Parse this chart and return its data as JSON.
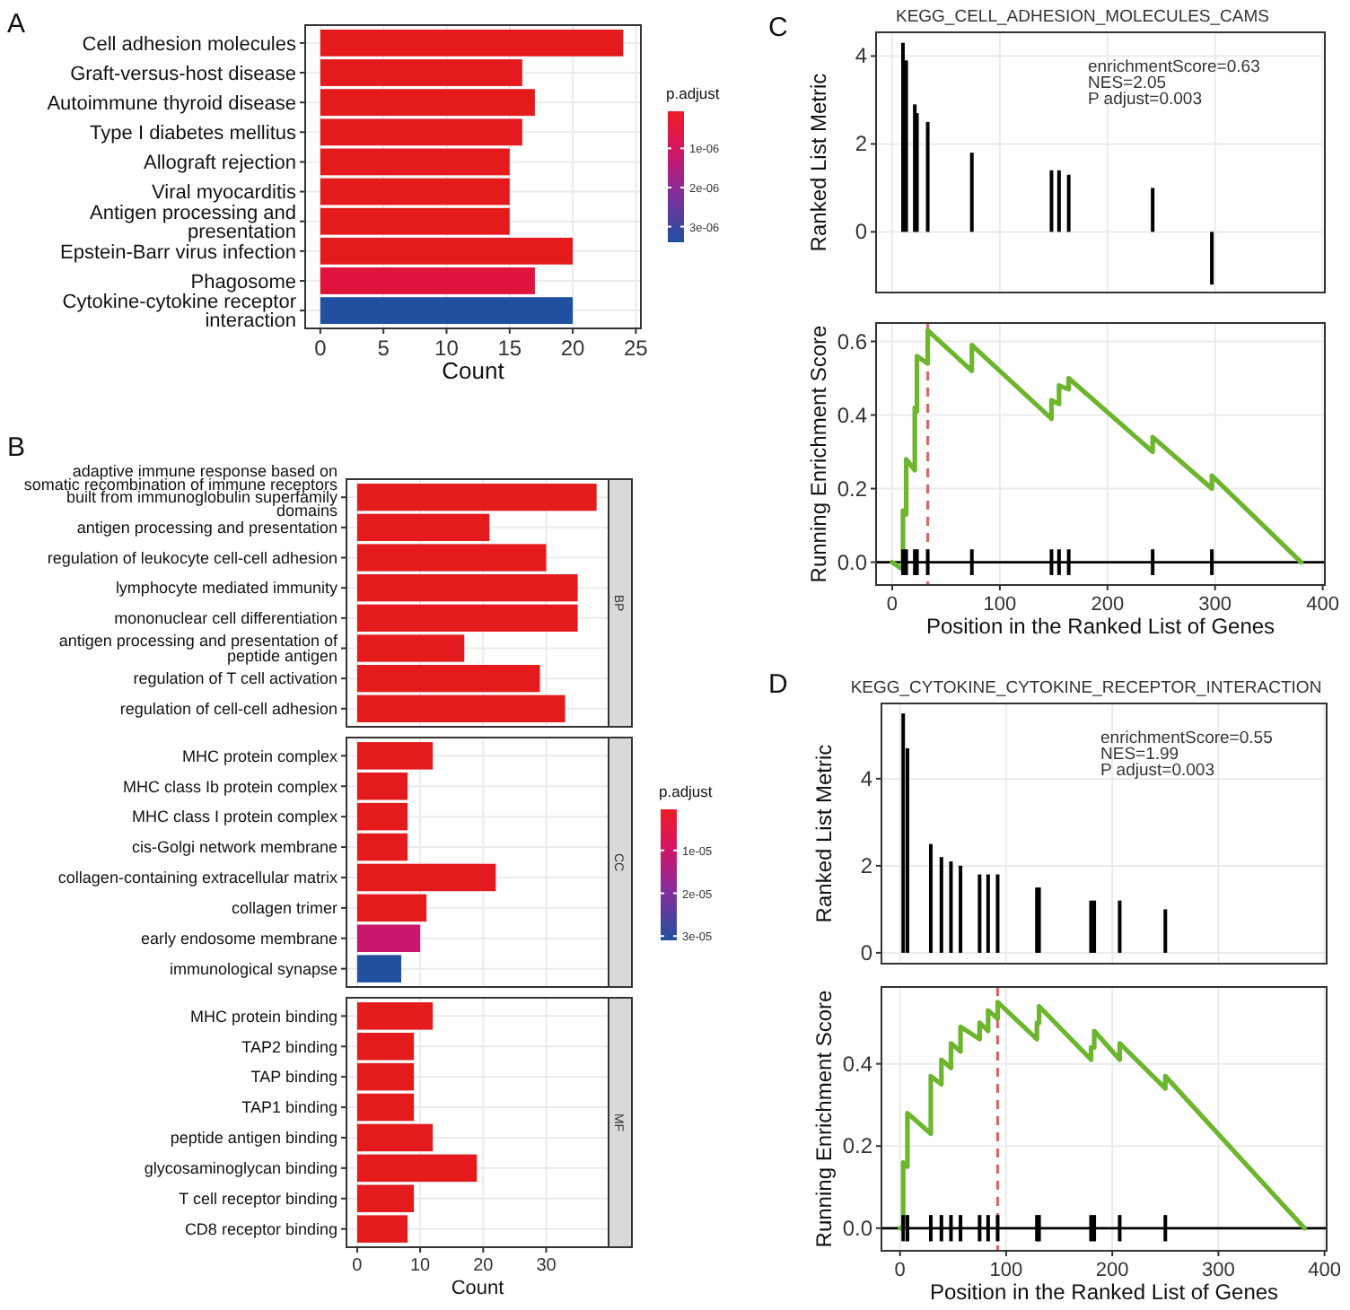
{
  "chart_data": [
    {
      "type": "bar",
      "orientation": "horizontal",
      "xlabel": "Count",
      "categories": [
        "Cell adhesion molecules",
        "Graft-versus-host disease",
        "Autoimmune thyroid disease",
        "Type I diabetes mellitus",
        "Allograft rejection",
        "Viral myocarditis",
        "Antigen processing and presentation",
        "Epstein-Barr virus infection",
        "Phagosome",
        "Cytokine-cytokine receptor interaction"
      ],
      "values": [
        24,
        16,
        17,
        16,
        15,
        15,
        15,
        20,
        17,
        20
      ],
      "colors": [
        "#e41a1c",
        "#e41a1c",
        "#e41a1c",
        "#e41a1c",
        "#e41a1c",
        "#e41a1c",
        "#e41a1c",
        "#e41a1c",
        "#e0133c",
        "#2150a0"
      ],
      "xlim": [
        -1.2,
        25.4
      ],
      "xticks": [
        0,
        5,
        10,
        15,
        20,
        25
      ],
      "grid": true,
      "clabel": "p.adjust",
      "clim": [
        5e-08,
        3.4e-06
      ],
      "cticks": [
        {
          "value": 1e-06,
          "label": "1e-06"
        },
        {
          "value": 2e-06,
          "label": "2e-06"
        },
        {
          "value": 3e-06,
          "label": "3e-06"
        }
      ],
      "annotations": [
        "A"
      ]
    },
    {
      "type": "bar",
      "orientation": "horizontal",
      "title": "BP",
      "categories": [
        "adaptive immune response based on somatic recombination of immune receptors built from immunoglobulin superfamily domains",
        "antigen processing and presentation",
        "regulation of leukocyte cell-cell adhesion",
        "lymphocyte mediated immunity",
        "mononuclear cell differentiation",
        "antigen processing and presentation of peptide antigen",
        "regulation of T cell activation",
        "regulation of cell-cell adhesion"
      ],
      "values": [
        38,
        21,
        30,
        35,
        35,
        17,
        29,
        33
      ],
      "colors": [
        "#e41a1c",
        "#e41a1c",
        "#e41a1c",
        "#e41a1c",
        "#e41a1c",
        "#e41a1c",
        "#e41a1c",
        "#e41a1c"
      ],
      "xlim": [
        -1.7,
        39.9
      ],
      "xticks": [
        0,
        10,
        20,
        30
      ],
      "grid": true,
      "tick_labels": "y",
      "annotations": [
        "B"
      ]
    },
    {
      "type": "bar",
      "orientation": "horizontal",
      "title": "CC",
      "categories": [
        "MHC protein complex",
        "MHC class Ib protein complex",
        "MHC class I protein complex",
        "cis-Golgi network membrane",
        "collagen-containing extracellular matrix",
        "collagen trimer",
        "early endosome membrane",
        "immunological synapse"
      ],
      "values": [
        12,
        8,
        8,
        8,
        22,
        11,
        10,
        7
      ],
      "colors": [
        "#e41a1c",
        "#e41a1c",
        "#e41a1c",
        "#e41a1c",
        "#e41a1c",
        "#e41a1c",
        "#c8176c",
        "#2150a0"
      ],
      "xlim": [
        -1.7,
        39.9
      ],
      "xticks": [
        0,
        10,
        20,
        30
      ],
      "grid": true,
      "tick_labels": "y",
      "clabel": "p.adjust",
      "clim": [
        4e-07,
        3.1e-05
      ],
      "cticks": [
        {
          "value": 1e-05,
          "label": "1e-05"
        },
        {
          "value": 2e-05,
          "label": "2e-05"
        },
        {
          "value": 3e-05,
          "label": "3e-05"
        }
      ]
    },
    {
      "type": "bar",
      "orientation": "horizontal",
      "title": "MF",
      "xlabel": "Count",
      "categories": [
        "MHC protein binding",
        "TAP2 binding",
        "TAP binding",
        "TAP1 binding",
        "peptide antigen binding",
        "glycosaminoglycan binding",
        "T cell receptor binding",
        "CD8 receptor binding"
      ],
      "values": [
        12,
        9,
        9,
        9,
        12,
        19,
        9,
        8
      ],
      "colors": [
        "#e41a1c",
        "#e41a1c",
        "#e41a1c",
        "#e41a1c",
        "#e41a1c",
        "#e41a1c",
        "#e41a1c",
        "#e41a1c"
      ],
      "xlim": [
        -1.7,
        39.9
      ],
      "xticks": [
        0,
        10,
        20,
        30
      ],
      "grid": true
    },
    {
      "type": "bar",
      "title": "KEGG_CELL_ADHESION_MOLECULES_CAMS",
      "ylabel": "Ranked List Metric",
      "x": [
        10,
        13,
        21,
        23,
        33,
        74,
        148,
        155,
        164,
        242,
        297
      ],
      "values": [
        4.3,
        3.9,
        2.9,
        2.7,
        2.5,
        1.8,
        1.4,
        1.4,
        1.3,
        1.0,
        -1.2
      ],
      "color": "#000000",
      "xlim": [
        -15,
        402
      ],
      "xticks": [
        0,
        100,
        200,
        300,
        400
      ],
      "ylim": [
        -1.38,
        4.54
      ],
      "yticks": [
        0,
        2,
        4
      ],
      "grid": true,
      "tick_labels": "y",
      "annotations": [
        "C",
        "enrichmentScore=0.63",
        "NES=2.05",
        "P adjust=0.003"
      ]
    },
    {
      "type": "line",
      "xlabel": "Position in the Ranked List of Genes",
      "ylabel": "Running Enrichment Score",
      "xlim": [
        -15,
        402
      ],
      "xticks": [
        0,
        100,
        200,
        300,
        400
      ],
      "ylim": [
        -0.062,
        0.65
      ],
      "yticks": [
        {
          "value": 0,
          "label": "0.0"
        },
        {
          "value": 0.2,
          "label": "0.2"
        },
        {
          "value": 0.4,
          "label": "0.4"
        },
        {
          "value": 0.6,
          "label": "0.6"
        }
      ],
      "grid": true,
      "series": [
        {
          "type": "line",
          "color": "#6cb52d",
          "x": [
            0,
            10,
            10,
            13,
            13,
            21,
            21,
            23,
            23,
            33,
            33,
            74,
            74,
            148,
            148,
            155,
            155,
            164,
            164,
            242,
            242,
            297,
            297,
            380
          ],
          "values": [
            0,
            -0.02,
            0.14,
            0.13,
            0.28,
            0.25,
            0.42,
            0.41,
            0.56,
            0.54,
            0.63,
            0.52,
            0.59,
            0.39,
            0.44,
            0.43,
            0.48,
            0.47,
            0.5,
            0.3,
            0.34,
            0.2,
            0.235,
            0
          ]
        },
        {
          "type": "bar",
          "color": "#000000",
          "x": [
            10,
            13,
            21,
            23,
            33,
            74,
            148,
            155,
            164,
            242,
            297
          ],
          "base": [
            -0.035,
            -0.035,
            -0.035,
            -0.035,
            -0.035,
            -0.035,
            -0.035,
            -0.035,
            -0.035,
            -0.035,
            -0.035
          ],
          "values": [
            0.07,
            0.07,
            0.07,
            0.07,
            0.07,
            0.07,
            0.07,
            0.07,
            0.07,
            0.07,
            0.07
          ]
        }
      ],
      "ref_lines": [
        {
          "axis": "y",
          "value": 0,
          "color": "#000000"
        },
        {
          "axis": "x",
          "value": 33,
          "color": "#e06666",
          "line_style": "dashed"
        }
      ]
    },
    {
      "type": "bar",
      "title": "KEGG_CYTOKINE_CYTOKINE_RECEPTOR_INTERACTION",
      "ylabel": "Ranked List Metric",
      "x": [
        3,
        7,
        29,
        39,
        48,
        57,
        75,
        83,
        92,
        129,
        131,
        180,
        183,
        207,
        250
      ],
      "values": [
        5.5,
        4.7,
        2.5,
        2.2,
        2.1,
        2.0,
        1.8,
        1.8,
        1.8,
        1.5,
        1.5,
        1.2,
        1.2,
        1.2,
        1.0
      ],
      "color": "#000000",
      "xlim": [
        -17.5,
        402
      ],
      "xticks": [
        0,
        100,
        200,
        300,
        400
      ],
      "ylim": [
        -0.25,
        5.73
      ],
      "yticks": [
        0,
        2,
        4
      ],
      "grid": true,
      "tick_labels": "y",
      "annotations": [
        "D",
        "enrichmentScore=0.55",
        "NES=1.99",
        "P adjust=0.003"
      ]
    },
    {
      "type": "line",
      "xlabel": "Position in the Ranked List of Genes",
      "ylabel": "Running Enrichment Score",
      "xlim": [
        -17.5,
        402
      ],
      "xticks": [
        0,
        100,
        200,
        300,
        400
      ],
      "ylim": [
        -0.055,
        0.587
      ],
      "yticks": [
        {
          "value": 0,
          "label": "0.0"
        },
        {
          "value": 0.2,
          "label": "0.2"
        },
        {
          "value": 0.4,
          "label": "0.4"
        }
      ],
      "grid": true,
      "series": [
        {
          "type": "line",
          "color": "#6cb52d",
          "x": [
            0,
            3,
            3,
            7,
            7,
            29,
            29,
            39,
            39,
            48,
            48,
            57,
            57,
            75,
            75,
            83,
            83,
            92,
            92,
            129,
            129,
            131,
            131,
            180,
            180,
            183,
            183,
            207,
            207,
            250,
            250,
            381
          ],
          "values": [
            0,
            0,
            0.16,
            0.15,
            0.28,
            0.23,
            0.37,
            0.35,
            0.41,
            0.39,
            0.45,
            0.43,
            0.49,
            0.46,
            0.5,
            0.48,
            0.53,
            0.51,
            0.55,
            0.46,
            0.5,
            0.5,
            0.54,
            0.41,
            0.44,
            0.44,
            0.48,
            0.41,
            0.45,
            0.34,
            0.37,
            0
          ]
        },
        {
          "type": "bar",
          "color": "#000000",
          "x": [
            3,
            7,
            29,
            39,
            48,
            57,
            75,
            83,
            92,
            129,
            131,
            180,
            183,
            207,
            250
          ],
          "base": [
            -0.032,
            -0.032,
            -0.032,
            -0.032,
            -0.032,
            -0.032,
            -0.032,
            -0.032,
            -0.032,
            -0.032,
            -0.032,
            -0.032,
            -0.032,
            -0.032,
            -0.032
          ],
          "values": [
            0.064,
            0.064,
            0.064,
            0.064,
            0.064,
            0.064,
            0.064,
            0.064,
            0.064,
            0.064,
            0.064,
            0.064,
            0.064,
            0.064,
            0.064
          ]
        }
      ],
      "ref_lines": [
        {
          "axis": "y",
          "value": 0,
          "color": "#000000"
        },
        {
          "axis": "x",
          "value": 92,
          "color": "#e06666",
          "line_style": "dashed"
        }
      ]
    }
  ]
}
